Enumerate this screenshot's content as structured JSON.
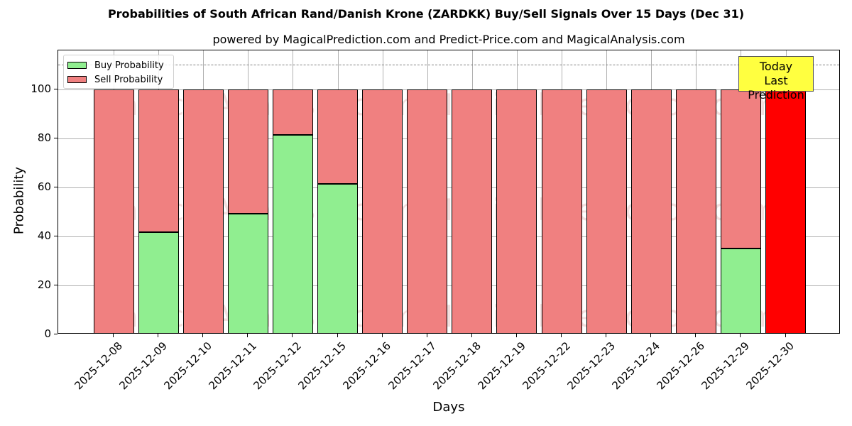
{
  "title": "Probabilities of South African Rand/Danish Krone (ZARDKK) Buy/Sell Signals Over 15 Days (Dec 31)",
  "subtitle": "powered by MagicalPrediction.com and Predict-Price.com and MagicalAnalysis.com",
  "legend": {
    "buy_label": "Buy Probability",
    "sell_label": "Sell Probability"
  },
  "annotation": {
    "line1": "Today",
    "line2": "Last Prediction"
  },
  "watermarks": [
    "MagicalAnalysis.com",
    "MagicalPrediction.com"
  ],
  "y_ticks": [
    "0",
    "20",
    "40",
    "60",
    "80",
    "100"
  ],
  "colors": {
    "buy": "#90ee90",
    "sell": "#f08080",
    "today": "#ff0000",
    "annotation_bg": "#ffff40"
  },
  "chart_data": {
    "type": "bar",
    "stacked": true,
    "title": "Probabilities of South African Rand/Danish Krone (ZARDKK) Buy/Sell Signals Over 15 Days (Dec 31)",
    "subtitle": "powered by MagicalPrediction.com and Predict-Price.com and MagicalAnalysis.com",
    "xlabel": "Days",
    "ylabel": "Probability",
    "ylim": [
      0,
      115
    ],
    "yticks": [
      0,
      20,
      40,
      60,
      80,
      100
    ],
    "grid": true,
    "legend_position": "upper left",
    "reference_line": {
      "y": 110,
      "style": "dashed",
      "color": "#808080"
    },
    "categories": [
      "2025-12-08",
      "2025-12-09",
      "2025-12-10",
      "2025-12-11",
      "2025-12-12",
      "2025-12-15",
      "2025-12-16",
      "2025-12-17",
      "2025-12-18",
      "2025-12-19",
      "2025-12-22",
      "2025-12-23",
      "2025-12-24",
      "2025-12-26",
      "2025-12-29",
      "2025-12-30"
    ],
    "series": [
      {
        "name": "Buy Probability",
        "color": "#90ee90",
        "values": [
          0,
          41.7,
          0,
          49.3,
          81.3,
          61.4,
          0,
          0,
          0,
          0,
          0,
          0,
          0,
          0,
          34.9,
          0
        ]
      },
      {
        "name": "Sell Probability",
        "color": "#f08080",
        "values": [
          100,
          58.3,
          100,
          50.7,
          18.7,
          38.6,
          100,
          100,
          100,
          100,
          100,
          100,
          100,
          100,
          65.1,
          100
        ]
      }
    ],
    "highlight": {
      "category": "2025-12-30",
      "color": "#ff0000",
      "label": "Today\nLast Prediction"
    }
  }
}
